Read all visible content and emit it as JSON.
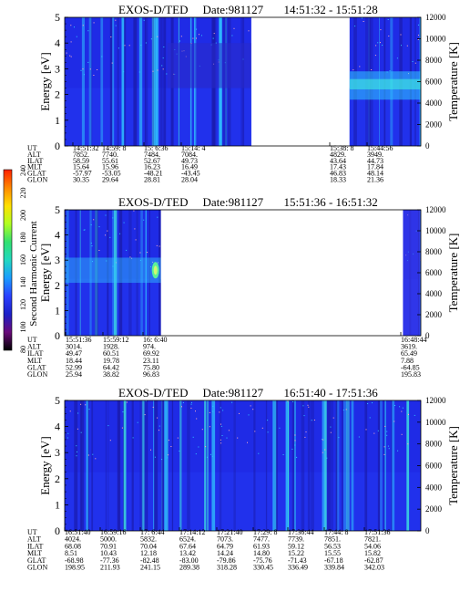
{
  "colorbar": {
    "label": "Second Harmonic Current",
    "ticks": [
      "240",
      "220",
      "200",
      "180",
      "160",
      "140",
      "120",
      "100",
      "80"
    ],
    "colors": [
      "#000000",
      "#6a0a7a",
      "#1c20c8",
      "#2a40ff",
      "#1a9cff",
      "#22d8c0",
      "#32e070",
      "#b0ff20",
      "#ffe000",
      "#ff8800",
      "#ff2000"
    ]
  },
  "colors": {
    "background_blue": "#1f2be6",
    "deep_blue": "#1a1aa8",
    "cyan": "#30c8ff",
    "aqua": "#40f0e0",
    "green": "#60ff90",
    "pink_dots": "#ffb0c0"
  },
  "chart_data": [
    {
      "type": "heatmap",
      "title_mission": "EXOS-D/TED",
      "title_date": "Date:981127",
      "title_range": "14:51:32 - 15:51:28",
      "ylabel": "Energy [eV]",
      "ylabel_right": "Temperature [K]",
      "ylim": [
        0,
        5
      ],
      "yticks": [
        "0",
        "1",
        "2",
        "3",
        "4",
        "5"
      ],
      "ylim_right": [
        0,
        12000
      ],
      "yticks_right": [
        "0",
        "2000",
        "4000",
        "6000",
        "8000",
        "10000",
        "12000"
      ],
      "data_segments": [
        {
          "from": 0.0,
          "to": 0.524
        },
        {
          "from": 0.8,
          "to": 1.0
        }
      ],
      "orbit_rows": [
        "UT",
        "ALT",
        "ILAT",
        "MLT",
        "GLAT",
        "GLON"
      ],
      "orbit_columns": [
        {
          "ut": "14:51:32",
          "alt": "7852.",
          "ilat": "58.59",
          "mlt": "15.64",
          "glat": "-57.97",
          "glon": "30.35"
        },
        {
          "ut": "14:59: 8",
          "alt": "7740.",
          "ilat": "55.61",
          "mlt": "15.96",
          "glat": "-53.05",
          "glon": "29.64"
        },
        {
          "ut": "15: 6:36",
          "alt": "7484.",
          "ilat": "52.67",
          "mlt": "16.23",
          "glat": "-48.21",
          "glon": "28.81"
        },
        {
          "ut": "15:14: 4",
          "alt": "7084.",
          "ilat": "49.73",
          "mlt": "16.49",
          "glat": "-43.45",
          "glon": "28.04"
        },
        {
          "ut": "15:38: 8",
          "alt": "4829.",
          "ilat": "43.64",
          "mlt": "17.43",
          "glat": "46.83",
          "glon": "18.33"
        },
        {
          "ut": "15:44:56",
          "alt": "3949.",
          "ilat": "44.73",
          "mlt": "17.84",
          "glat": "48.14",
          "glon": "21.36"
        }
      ]
    },
    {
      "type": "heatmap",
      "title_mission": "EXOS-D/TED",
      "title_date": "Date:981127",
      "title_range": "15:51:36 - 16:51:32",
      "ylabel": "Energy [eV]",
      "ylabel_right": "Temperature [K]",
      "ylim": [
        0,
        5
      ],
      "yticks": [
        "0",
        "1",
        "2",
        "3",
        "4",
        "5"
      ],
      "ylim_right": [
        0,
        12000
      ],
      "yticks_right": [
        "0",
        "2000",
        "4000",
        "6000",
        "8000",
        "10000",
        "12000"
      ],
      "data_segments": [
        {
          "from": 0.0,
          "to": 0.27
        },
        {
          "from": 0.95,
          "to": 1.0
        }
      ],
      "orbit_rows": [
        "UT",
        "ALT",
        "ILAT",
        "MLT",
        "GLAT",
        "GLON"
      ],
      "orbit_columns": [
        {
          "ut": "15:51:36",
          "alt": "3014.",
          "ilat": "49.47",
          "mlt": "18.44",
          "glat": "52.99",
          "glon": "25.94"
        },
        {
          "ut": "15:59:12",
          "alt": "1928.",
          "ilat": "60.51",
          "mlt": "19.78",
          "glat": "64.42",
          "glon": "38.82"
        },
        {
          "ut": "16: 6:40",
          "alt": "974.",
          "ilat": "69.92",
          "mlt": "23.11",
          "glat": "75.80",
          "glon": "96.83"
        },
        {
          "ut": "16:48:44",
          "alt": "3619.",
          "ilat": "65.49",
          "mlt": "7.88",
          "glat": "-64.85",
          "glon": "195.83"
        }
      ]
    },
    {
      "type": "heatmap",
      "title_mission": "EXOS-D/TED",
      "title_date": "Date:981127",
      "title_range": "16:51:40 - 17:51:36",
      "ylabel": "Energy [eV]",
      "ylabel_right": "Temperature [K]",
      "ylim": [
        0,
        5
      ],
      "yticks": [
        "0",
        "1",
        "2",
        "3",
        "4",
        "5"
      ],
      "ylim_right": [
        0,
        12000
      ],
      "yticks_right": [
        "0",
        "2000",
        "4000",
        "6000",
        "8000",
        "10000",
        "12000"
      ],
      "data_segments": [
        {
          "from": 0.0,
          "to": 1.0
        }
      ],
      "orbit_rows": [
        "UT",
        "ALT",
        "ILAT",
        "MLT",
        "GLAT",
        "GLON"
      ],
      "orbit_columns": [
        {
          "ut": "16:51:40",
          "alt": "4024.",
          "ilat": "68.08",
          "mlt": "8.51",
          "glat": "-68.98",
          "glon": "198.95"
        },
        {
          "ut": "16:59:16",
          "alt": "5000.",
          "ilat": "70.91",
          "mlt": "10.43",
          "glat": "-77.36",
          "glon": "211.93"
        },
        {
          "ut": "17: 6:44",
          "alt": "5832.",
          "ilat": "70.04",
          "mlt": "12.18",
          "glat": "-82.48",
          "glon": "241.15"
        },
        {
          "ut": "17:14:12",
          "alt": "6524.",
          "ilat": "67.64",
          "mlt": "13.42",
          "glat": "-83.00",
          "glon": "289.38"
        },
        {
          "ut": "17:21:40",
          "alt": "7073.",
          "ilat": "64.79",
          "mlt": "14.24",
          "glat": "-79.86",
          "glon": "318.28"
        },
        {
          "ut": "17:29: 8",
          "alt": "7477.",
          "ilat": "61.93",
          "mlt": "14.80",
          "glat": "-75.76",
          "glon": "330.45"
        },
        {
          "ut": "17:36:44",
          "alt": "7739.",
          "ilat": "59.12",
          "mlt": "15.22",
          "glat": "-71.43",
          "glon": "336.49"
        },
        {
          "ut": "17:44: 8",
          "alt": "7851.",
          "ilat": "56.53",
          "mlt": "15.55",
          "glat": "-67.18",
          "glon": "339.84"
        },
        {
          "ut": "17:51:36",
          "alt": "7821.",
          "ilat": "54.06",
          "mlt": "15.82",
          "glat": "-62.87",
          "glon": "342.03"
        }
      ]
    }
  ]
}
